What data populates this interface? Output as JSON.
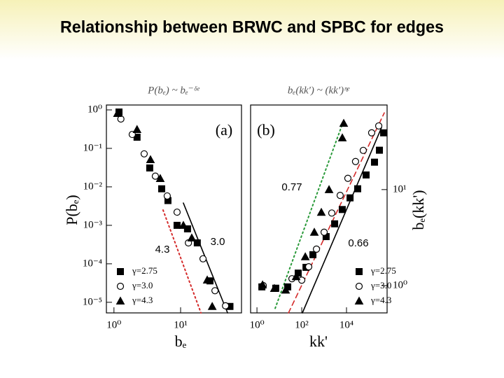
{
  "title": "Relationship between BRWC and SPBC for edges",
  "chart_data": [
    {
      "type": "scatter",
      "title": "P(bₑ) ~ bₑ⁻ᵟᵉ",
      "panel_label": "(a)",
      "x_label": "bₑ",
      "y_label": "P(bₑ)",
      "x_scale": "log",
      "y_scale": "log",
      "y_axis_side": "left",
      "legend": "lower left",
      "xlim": [
        0.77,
        82
      ],
      "ylim": [
        5.3e-06,
        1.34
      ],
      "xticks": [
        {
          "value": 1,
          "label": "10⁰"
        },
        {
          "value": 10,
          "label": "10¹"
        }
      ],
      "yticks": [
        {
          "value": 1,
          "label": "10⁰"
        },
        {
          "value": 0.1,
          "label": "10⁻¹"
        },
        {
          "value": 0.01,
          "label": "10⁻²"
        },
        {
          "value": 0.001,
          "label": "10⁻³"
        },
        {
          "value": 0.0001,
          "label": "10⁻⁴"
        },
        {
          "value": 1e-05,
          "label": "10⁻⁵"
        }
      ],
      "series": [
        {
          "name": "γ=2.75",
          "marker": "square",
          "filled": true,
          "color": "#000000",
          "x": [
            1.19,
            2.22,
            3.44,
            5.2,
            6.46,
            8.85,
            12.7,
            17.8,
            27.6,
            55
          ],
          "values": [
            0.88,
            0.195,
            0.031,
            0.0089,
            0.0044,
            0.001,
            0.00081,
            0.00035,
            3.6e-05,
            7.8e-06
          ]
        },
        {
          "name": "γ=3.0",
          "marker": "circle",
          "filled": false,
          "color": "#000000",
          "x": [
            1.27,
            1.88,
            2.84,
            4.18,
            6.3,
            8.85,
            13.1,
            21.7,
            32.8,
            47.2
          ],
          "values": [
            0.58,
            0.23,
            0.072,
            0.019,
            0.0058,
            0.0022,
            0.00035,
            0.000135,
            2e-05,
            8.1e-06
          ]
        },
        {
          "name": "γ=4.3",
          "marker": "triangle",
          "filled": true,
          "color": "#000000",
          "x": [
            1.13,
            2.22,
            3.53,
            4.95,
            11,
            14.7,
            25.1,
            29.8
          ],
          "values": [
            0.81,
            0.31,
            0.051,
            0.0165,
            0.001,
            0.00047,
            3.8e-05,
            7.8e-06
          ]
        }
      ],
      "fits": [
        {
          "label": "4.3",
          "color": "#d42a2a",
          "style": "dotted",
          "x": [
            5.45,
            20.2
          ],
          "values": [
            0.0025,
            5.3e-06
          ]
        },
        {
          "label": "3.0",
          "color": "#000000",
          "style": "solid",
          "x": [
            11,
            50.7
          ],
          "values": [
            0.0038,
            5.3e-06
          ]
        }
      ]
    },
    {
      "type": "scatter",
      "title": "bₑ(kk′) ~ (kk′)ᶯᵉ",
      "panel_label": "(b)",
      "x_label": "kk'",
      "y_label": "bₑ(kk')",
      "x_scale": "log",
      "y_scale": "log",
      "y_axis_side": "right",
      "legend": "lower right",
      "xlim": [
        0.52,
        650000
      ],
      "ylim": [
        0.52,
        76
      ],
      "xticks": [
        {
          "value": 1,
          "label": "10⁰"
        },
        {
          "value": 100,
          "label": "10²"
        },
        {
          "value": 10000,
          "label": "10⁴"
        }
      ],
      "yticks": [
        {
          "value": 1,
          "label": "10⁰"
        },
        {
          "value": 10,
          "label": "10¹"
        }
      ],
      "series": [
        {
          "name": "γ=2.75",
          "marker": "square",
          "filled": true,
          "color": "#000000",
          "x": [
            1.66,
            6.9,
            23.7,
            69.5,
            155,
            316,
            1230,
            2950,
            6460,
            14400,
            31600,
            75000,
            178000,
            295000,
            455000
          ],
          "values": [
            0.97,
            0.94,
            0.97,
            1.35,
            1.55,
            2.1,
            3.24,
            4.4,
            6.2,
            8.2,
            10.2,
            14.2,
            19.3,
            25.7,
            39
          ]
        },
        {
          "name": "γ=3.0",
          "marker": "circle",
          "filled": false,
          "color": "#000000",
          "x": [
            1.91,
            36.5,
            100,
            205,
            455,
            1000,
            2200,
            5200,
            11500,
            25300,
            56000,
            133000,
            275000
          ],
          "values": [
            1.0,
            1.18,
            1.14,
            1.57,
            2.4,
            3.6,
            5.7,
            8.7,
            13.1,
            19.6,
            25.6,
            39,
            46
          ]
        },
        {
          "name": "γ=4.3",
          "marker": "triangle",
          "filled": true,
          "color": "#000000",
          "x": [
            1.78,
            6.0,
            19.1,
            56,
            144,
            365,
            750,
            1660,
            6500,
            7500
          ],
          "values": [
            1.02,
            0.935,
            0.9,
            1.24,
            2.0,
            3.6,
            5.8,
            10,
            34.6,
            49
          ]
        }
      ],
      "fits": [
        {
          "label": "0.77",
          "color": "#2a9a3a",
          "style": "dotted",
          "x": [
            6.5,
            6960
          ],
          "values": [
            0.58,
            50
          ]
        },
        {
          "label": "0.66",
          "color": "#000000",
          "style": "solid",
          "x": [
            107,
            363000
          ],
          "values": [
            0.52,
            44
          ]
        },
        {
          "color": "#d42a2a",
          "style": "dashed",
          "x": [
            25.6,
            488000
          ],
          "values": [
            0.52,
            63
          ]
        }
      ]
    }
  ]
}
